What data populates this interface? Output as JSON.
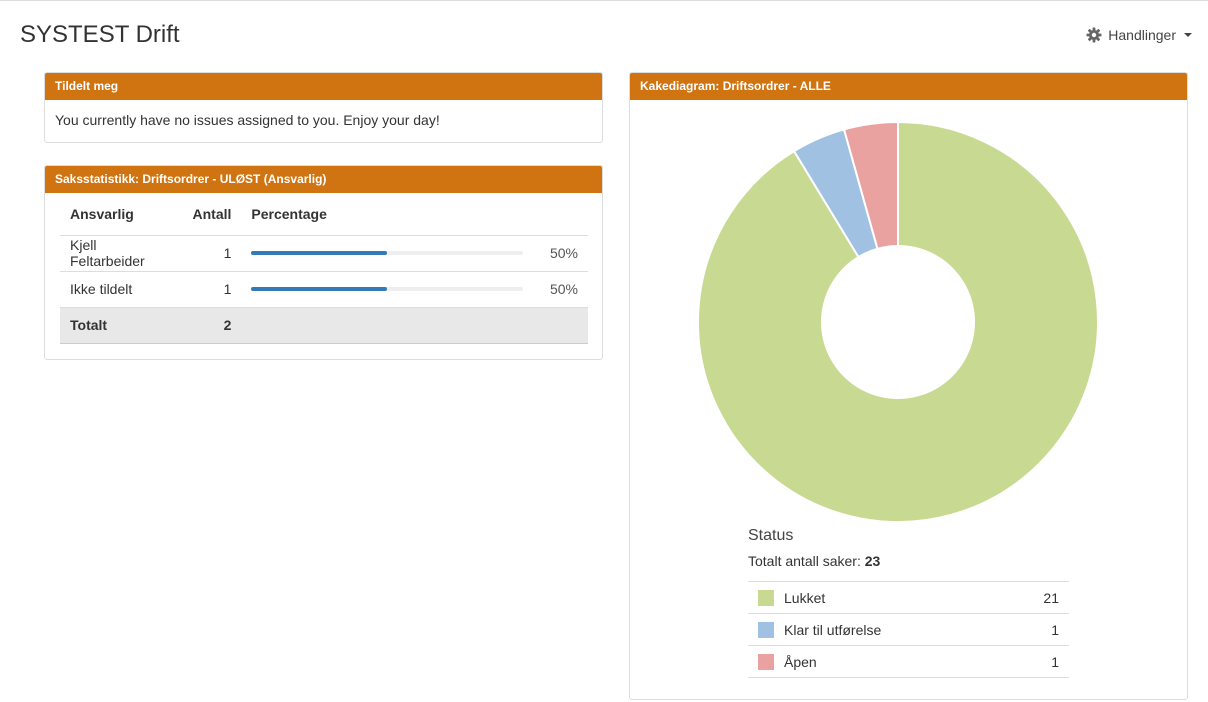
{
  "header": {
    "title": "SYSTEST Drift",
    "actions_label": "Handlinger",
    "actions_icon": "gear-icon"
  },
  "assigned_panel": {
    "title": "Tildelt meg",
    "message": "You currently have no issues assigned to you. Enjoy your day!"
  },
  "stats_panel": {
    "title": "Saksstatistikk: Driftsordrer - ULØST (Ansvarlig)",
    "columns": [
      "Ansvarlig",
      "Antall",
      "Percentage"
    ],
    "rows": [
      {
        "name": "Kjell Feltarbeider",
        "count": "1",
        "percent": "50%",
        "fraction": 0.5
      },
      {
        "name": "Ikke tildelt",
        "count": "1",
        "percent": "50%",
        "fraction": 0.5
      }
    ],
    "total": {
      "label": "Totalt",
      "count": "2"
    },
    "bar_color": "#337ab7"
  },
  "chart_panel": {
    "title": "Kakediagram: Driftsordrer - ALLE",
    "legend_title": "Status",
    "total_label": "Totalt antall saker:",
    "total_value": "23"
  },
  "chart_data": {
    "type": "pie",
    "donut": true,
    "title": "Status",
    "categories": [
      "Lukket",
      "Klar til utførelse",
      "Åpen"
    ],
    "values": [
      21,
      1,
      1
    ],
    "colors": [
      "#c8da91",
      "#a0c1e2",
      "#e9a2a0"
    ],
    "total": 23
  }
}
